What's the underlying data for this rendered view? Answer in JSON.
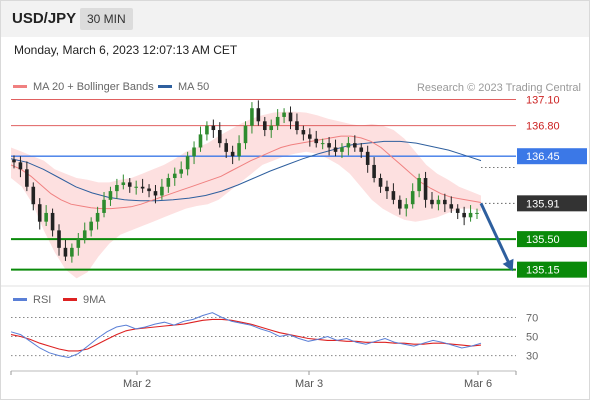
{
  "header": {
    "pair": "USD/JPY",
    "timeframe": "30 MIN",
    "datetime": "Monday, March 6, 2023 12:07:13 AM CET",
    "credit": "Research © 2023 Trading Central"
  },
  "legend": {
    "ma20_label": "MA 20 + Bollinger Bands",
    "ma50_label": "MA 50",
    "rsi_label": "RSI",
    "rsi_ma_label": "9MA"
  },
  "colors": {
    "ma20": "#f08080",
    "ma50": "#2e5f9e",
    "bollinger_fill": "#fde0e0",
    "support": "#0a8a0a",
    "pivot": "#3b78e7",
    "resistance": "#e06060",
    "candle_up": "#2e8b2e",
    "candle_down": "#222222",
    "rsi": "#5a7fd6",
    "rsi_ma": "#dd2222",
    "arrow": "#2e5f9e"
  },
  "chart_data": [
    {
      "type": "candlestick",
      "title": "USD/JPY 30 MIN",
      "x_ticks": [
        "Mar 2",
        "Mar 3",
        "Mar 6"
      ],
      "y_range": [
        135.02,
        137.14
      ],
      "levels": [
        {
          "value": 137.1,
          "label": "137.10",
          "kind": "resistance"
        },
        {
          "value": 136.8,
          "label": "136.80",
          "kind": "resistance"
        },
        {
          "value": 136.45,
          "label": "136.45",
          "kind": "pivot"
        },
        {
          "value": 135.91,
          "label": "135.91",
          "kind": "last_price"
        },
        {
          "value": 135.5,
          "label": "135.50",
          "kind": "support"
        },
        {
          "value": 135.15,
          "label": "135.15",
          "kind": "support"
        }
      ],
      "close_series": [
        136.38,
        136.3,
        136.1,
        135.9,
        135.7,
        135.8,
        135.6,
        135.4,
        135.3,
        135.4,
        135.5,
        135.6,
        135.7,
        135.8,
        135.95,
        136.05,
        136.12,
        136.15,
        136.1,
        136.1,
        136.08,
        136.05,
        136.0,
        136.1,
        136.2,
        136.25,
        136.3,
        136.45,
        136.55,
        136.7,
        136.8,
        136.75,
        136.6,
        136.5,
        136.45,
        136.6,
        136.8,
        137.0,
        136.85,
        136.75,
        136.8,
        136.9,
        136.95,
        136.85,
        136.75,
        136.7,
        136.65,
        136.6,
        136.6,
        136.55,
        136.5,
        136.55,
        136.6,
        136.55,
        136.5,
        136.35,
        136.2,
        136.1,
        136.05,
        135.95,
        135.85,
        135.9,
        136.05,
        136.2,
        135.95,
        135.9,
        135.95,
        135.9,
        135.85,
        135.8,
        135.75,
        135.8,
        135.8
      ],
      "ma20_series": [
        136.35,
        136.3,
        136.22,
        136.12,
        136.02,
        135.95,
        135.9,
        135.88,
        135.86,
        135.85,
        135.85,
        135.86,
        135.87,
        135.9,
        135.94,
        135.98,
        136.02,
        136.06,
        136.1,
        136.14,
        136.18,
        136.22,
        136.28,
        136.34,
        136.4,
        136.45,
        136.5,
        136.55,
        136.58,
        136.6,
        136.62,
        136.64,
        136.66,
        136.68,
        136.68,
        136.66,
        136.62,
        136.55,
        136.45,
        136.35,
        136.25,
        136.15,
        136.08,
        136.02,
        135.98,
        135.96,
        135.94,
        135.92
      ],
      "bollinger_upper": [
        136.55,
        136.5,
        136.45,
        136.4,
        136.3,
        136.25,
        136.2,
        136.18,
        136.15,
        136.15,
        136.18,
        136.2,
        136.25,
        136.3,
        136.35,
        136.42,
        136.5,
        136.55,
        136.6,
        136.68,
        136.75,
        136.82,
        136.88,
        136.92,
        136.95,
        136.96,
        136.96,
        136.95,
        136.92,
        136.88,
        136.85,
        136.82,
        136.8,
        136.82,
        136.8,
        136.75,
        136.65,
        136.5,
        136.35,
        136.25,
        136.18,
        136.1,
        136.05,
        136.0
      ],
      "bollinger_lower": [
        136.2,
        136.1,
        135.9,
        135.6,
        135.35,
        135.15,
        135.05,
        135.12,
        135.3,
        135.45,
        135.55,
        135.6,
        135.65,
        135.7,
        135.75,
        135.8,
        135.85,
        135.88,
        135.9,
        135.95,
        136.05,
        136.15,
        136.25,
        136.35,
        136.4,
        136.45,
        136.48,
        136.5,
        136.48,
        136.42,
        136.35,
        136.25,
        136.1,
        135.95,
        135.85,
        135.78,
        135.72,
        135.7,
        135.72,
        135.75,
        135.8,
        135.85,
        135.85,
        135.82
      ],
      "ma50_series": [
        136.42,
        136.38,
        136.3,
        136.2,
        136.1,
        136.03,
        135.98,
        135.95,
        135.94,
        135.94,
        135.95,
        135.97,
        136.0,
        136.05,
        136.12,
        136.2,
        136.28,
        136.35,
        136.42,
        136.48,
        136.53,
        136.58,
        136.6,
        136.62,
        136.62,
        136.6,
        136.56,
        136.52,
        136.46,
        136.4
      ],
      "arrow": {
        "from": 135.91,
        "to": 135.15
      }
    },
    {
      "type": "line",
      "title": "RSI",
      "y_ticks": [
        70,
        50,
        30
      ],
      "y_range": [
        16,
        82
      ],
      "series": [
        {
          "name": "RSI",
          "values": [
            55,
            52,
            45,
            38,
            33,
            30,
            28,
            32,
            40,
            48,
            55,
            60,
            62,
            58,
            60,
            63,
            65,
            62,
            66,
            68,
            72,
            75,
            70,
            66,
            64,
            62,
            58,
            55,
            50,
            52,
            48,
            45,
            47,
            50,
            46,
            48,
            44,
            42,
            45,
            48,
            44,
            42,
            40,
            43,
            46,
            44,
            41,
            38,
            40,
            43
          ]
        },
        {
          "name": "9MA",
          "values": [
            52,
            50,
            47,
            43,
            40,
            37,
            35,
            35,
            37,
            42,
            47,
            52,
            56,
            58,
            59,
            60,
            61,
            62,
            63,
            65,
            67,
            68,
            68,
            67,
            65,
            63,
            60,
            57,
            54,
            52,
            50,
            48,
            47,
            46,
            46,
            45,
            45,
            44,
            44,
            44,
            43,
            43,
            42,
            42,
            43,
            43,
            42,
            41,
            40,
            41
          ]
        }
      ]
    }
  ]
}
